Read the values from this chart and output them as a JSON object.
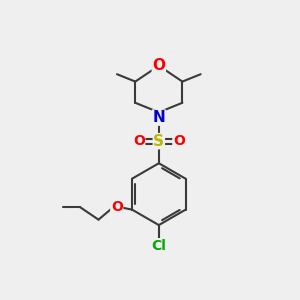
{
  "bg_color": "#efefef",
  "bond_color": "#3a3a3a",
  "bond_width": 1.5,
  "atom_colors": {
    "O": "#ff0000",
    "N": "#0000cc",
    "S": "#b8b800",
    "Cl": "#00aa00",
    "C": "#3a3a3a"
  },
  "font_size_atom": 10,
  "font_size_small": 8.5
}
